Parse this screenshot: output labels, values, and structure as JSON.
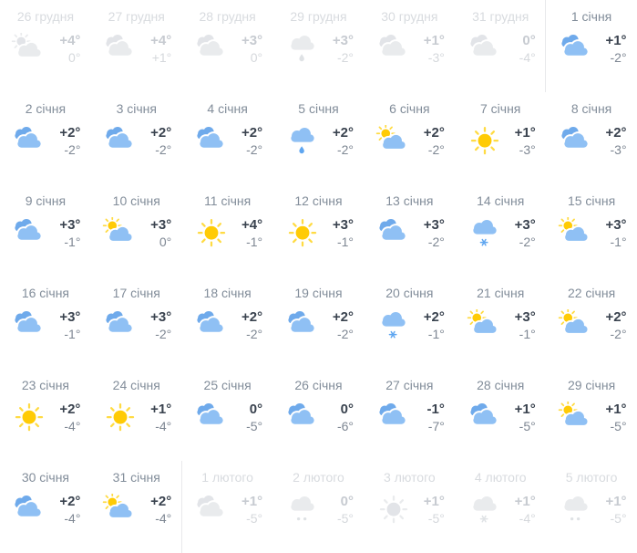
{
  "calendar": {
    "name": "weather-month-calendar",
    "language": "uk",
    "colors": {
      "background": "#ffffff",
      "date_text": "#828d9a",
      "high_temp_text": "#3a434f",
      "low_temp_text": "#7e8793",
      "muted_date_text": "#d8dbdf",
      "muted_high_text": "#c7cbd1",
      "muted_low_text": "#d5d8dc",
      "cloud_front": "#8fc0f4",
      "cloud_back": "#6faaeb",
      "sun_core": "#ffcb05",
      "sun_rays": "#ffdb43",
      "precip_blue": "#5fa6f0",
      "muted_cloud_front": "#e9ebed",
      "muted_cloud_back": "#e2e4e8",
      "muted_precip": "#dfe2e5",
      "month_divider": "#e8e9eb"
    },
    "days": [
      {
        "date": "26 грудня",
        "icon": "sun-cloud",
        "high": "+4°",
        "low": "0°",
        "muted": true
      },
      {
        "date": "27 грудня",
        "icon": "clouds",
        "high": "+4°",
        "low": "+1°",
        "muted": true
      },
      {
        "date": "28 грудня",
        "icon": "clouds",
        "high": "+3°",
        "low": "0°",
        "muted": true
      },
      {
        "date": "29 грудня",
        "icon": "rain",
        "high": "+3°",
        "low": "-2°",
        "muted": true
      },
      {
        "date": "30 грудня",
        "icon": "clouds",
        "high": "+1°",
        "low": "-3°",
        "muted": true
      },
      {
        "date": "31 грудня",
        "icon": "clouds",
        "high": "0°",
        "low": "-4°",
        "muted": true
      },
      {
        "date": "1 січня",
        "icon": "clouds",
        "high": "+1°",
        "low": "-2°",
        "muted": false,
        "month_start": true
      },
      {
        "date": "2 січня",
        "icon": "clouds",
        "high": "+2°",
        "low": "-2°"
      },
      {
        "date": "3 січня",
        "icon": "clouds",
        "high": "+2°",
        "low": "-2°"
      },
      {
        "date": "4 січня",
        "icon": "clouds",
        "high": "+2°",
        "low": "-2°"
      },
      {
        "date": "5 січня",
        "icon": "rain",
        "high": "+2°",
        "low": "-2°"
      },
      {
        "date": "6 січня",
        "icon": "sun-cloud",
        "high": "+2°",
        "low": "-2°"
      },
      {
        "date": "7 січня",
        "icon": "sun",
        "high": "+1°",
        "low": "-3°"
      },
      {
        "date": "8 січня",
        "icon": "clouds",
        "high": "+2°",
        "low": "-3°"
      },
      {
        "date": "9 січня",
        "icon": "clouds",
        "high": "+3°",
        "low": "-1°"
      },
      {
        "date": "10 січня",
        "icon": "sun-cloud",
        "high": "+3°",
        "low": "0°"
      },
      {
        "date": "11 січня",
        "icon": "sun",
        "high": "+4°",
        "low": "-1°"
      },
      {
        "date": "12 січня",
        "icon": "sun",
        "high": "+3°",
        "low": "-1°"
      },
      {
        "date": "13 січня",
        "icon": "clouds",
        "high": "+3°",
        "low": "-2°"
      },
      {
        "date": "14 січня",
        "icon": "snow",
        "high": "+3°",
        "low": "-2°"
      },
      {
        "date": "15 січня",
        "icon": "sun-cloud",
        "high": "+3°",
        "low": "-1°"
      },
      {
        "date": "16 січня",
        "icon": "clouds",
        "high": "+3°",
        "low": "-1°"
      },
      {
        "date": "17 січня",
        "icon": "clouds",
        "high": "+3°",
        "low": "-2°"
      },
      {
        "date": "18 січня",
        "icon": "clouds",
        "high": "+2°",
        "low": "-2°"
      },
      {
        "date": "19 січня",
        "icon": "clouds",
        "high": "+2°",
        "low": "-2°"
      },
      {
        "date": "20 січня",
        "icon": "snow",
        "high": "+2°",
        "low": "-1°"
      },
      {
        "date": "21 січня",
        "icon": "sun-cloud",
        "high": "+3°",
        "low": "-1°"
      },
      {
        "date": "22 січня",
        "icon": "sun-cloud",
        "high": "+2°",
        "low": "-2°"
      },
      {
        "date": "23 січня",
        "icon": "sun",
        "high": "+2°",
        "low": "-4°"
      },
      {
        "date": "24 січня",
        "icon": "sun",
        "high": "+1°",
        "low": "-4°"
      },
      {
        "date": "25 січня",
        "icon": "clouds",
        "high": "0°",
        "low": "-5°"
      },
      {
        "date": "26 січня",
        "icon": "clouds",
        "high": "0°",
        "low": "-6°"
      },
      {
        "date": "27 січня",
        "icon": "clouds",
        "high": "-1°",
        "low": "-7°"
      },
      {
        "date": "28 січня",
        "icon": "clouds",
        "high": "+1°",
        "low": "-5°"
      },
      {
        "date": "29 січня",
        "icon": "sun-cloud",
        "high": "+1°",
        "low": "-5°"
      },
      {
        "date": "30 січня",
        "icon": "clouds",
        "high": "+2°",
        "low": "-4°"
      },
      {
        "date": "31 січня",
        "icon": "sun-cloud",
        "high": "+2°",
        "low": "-4°"
      },
      {
        "date": "1 лютого",
        "icon": "clouds",
        "high": "+1°",
        "low": "-5°",
        "muted": true,
        "month_start": true
      },
      {
        "date": "2 лютого",
        "icon": "sleet",
        "high": "0°",
        "low": "-5°",
        "muted": true
      },
      {
        "date": "3 лютого",
        "icon": "sun",
        "high": "+1°",
        "low": "-5°",
        "muted": true
      },
      {
        "date": "4 лютого",
        "icon": "snow",
        "high": "+1°",
        "low": "-4°",
        "muted": true
      },
      {
        "date": "5 лютого",
        "icon": "sleet",
        "high": "+1°",
        "low": "-5°",
        "muted": true
      }
    ]
  }
}
